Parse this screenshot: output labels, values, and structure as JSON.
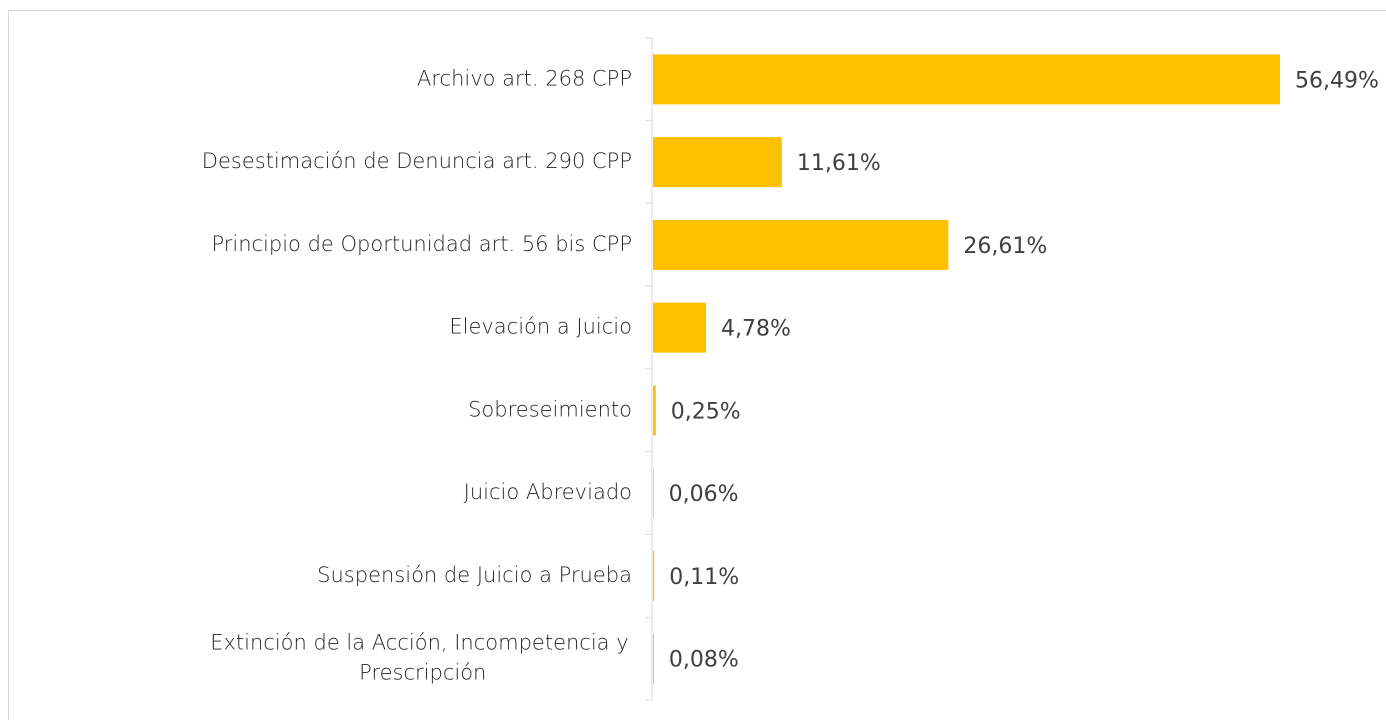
{
  "chart_data": {
    "type": "bar",
    "orientation": "horizontal",
    "categories": [
      "Archivo art. 268 CPP",
      "Desestimación de Denuncia art. 290 CPP",
      "Principio de Oportunidad art. 56 bis CPP",
      "Elevación a Juicio",
      "Sobreseimiento",
      "Juicio Abreviado",
      "Suspensión de Juicio a Prueba",
      "Extinción de la Acción, Incompetencia y Prescripción"
    ],
    "values": [
      56.49,
      11.61,
      26.61,
      4.78,
      0.25,
      0.06,
      0.11,
      0.08
    ],
    "value_labels": [
      "56,49%",
      "11,61%",
      "26,61%",
      "4,78%",
      "0,25%",
      "0,06%",
      "0,11%",
      "0,08%"
    ],
    "color": "#ffc000"
  }
}
